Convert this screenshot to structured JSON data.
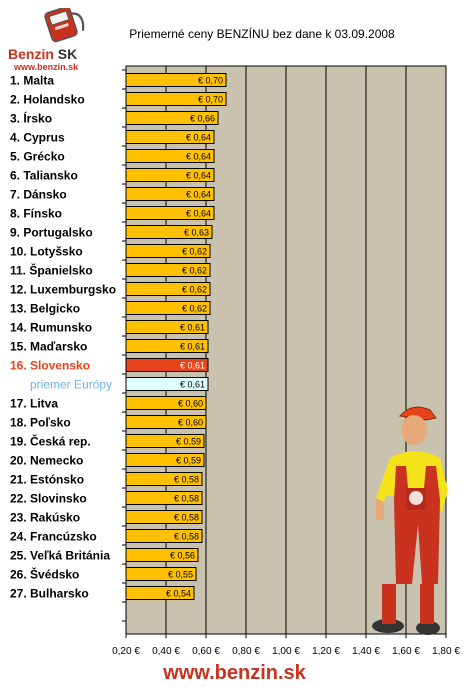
{
  "logo": {
    "brand": "Benzin",
    "brand_suffix": "SK",
    "url": "www.benzin.sk"
  },
  "footer": {
    "url": "www.benzin.sk"
  },
  "colors": {
    "bar": "#FFC000",
    "bar_highlight": "#E8441C",
    "bar_average": "#DDFFFF",
    "plot_bg": "#C8C2AE",
    "highlight_label": "#E8441C",
    "average_label": "#6CB4E6",
    "brand_red": "#C8321E"
  },
  "chart_data": {
    "type": "bar",
    "orientation": "horizontal",
    "title": "Priemerné ceny BENZÍNU bez dane k 03.09.2008",
    "categories": [
      "1. Malta",
      "2. Holandsko",
      "3. Írsko",
      "4. Cyprus",
      "5. Grécko",
      "6. Taliansko",
      "7. Dánsko",
      "8. Fínsko",
      "9. Portugalsko",
      "10. Lotyšsko",
      "11. Španielsko",
      "12. Luxemburgsko",
      "13. Belgicko",
      "14. Rumunsko",
      "15. Maďarsko",
      "16. Slovensko",
      "priemer Európy",
      "17. Litva",
      "18. Poľsko",
      "19. Česká rep.",
      "20. Nemecko",
      "21. Estónsko",
      "22. Slovinsko",
      "23. Rakúsko",
      "24. Francúzsko",
      "25. Veľká Británia",
      "26. Švédsko",
      "27. Bulharsko"
    ],
    "values": [
      0.7,
      0.7,
      0.66,
      0.64,
      0.64,
      0.64,
      0.64,
      0.64,
      0.63,
      0.62,
      0.62,
      0.62,
      0.62,
      0.61,
      0.61,
      0.61,
      0.61,
      0.6,
      0.6,
      0.59,
      0.59,
      0.58,
      0.58,
      0.58,
      0.58,
      0.56,
      0.55,
      0.54
    ],
    "value_labels": [
      "€ 0,70",
      "€ 0,70",
      "€ 0,66",
      "€ 0,64",
      "€ 0,64",
      "€ 0,64",
      "€ 0,64",
      "€ 0,64",
      "€ 0,63",
      "€ 0,62",
      "€ 0,62",
      "€ 0,62",
      "€ 0,62",
      "€ 0,61",
      "€ 0,61",
      "€ 0,61",
      "€ 0,61",
      "€ 0,60",
      "€ 0,60",
      "€ 0,59",
      "€ 0,59",
      "€ 0,58",
      "€ 0,58",
      "€ 0,58",
      "€ 0,58",
      "€ 0,56",
      "€ 0,55",
      "€ 0,54"
    ],
    "highlight": {
      "16. Slovensko": "bar_highlight",
      "priemer Európy": "bar_average"
    },
    "xlim": [
      0.2,
      1.8
    ],
    "xticks": [
      0.2,
      0.4,
      0.6,
      0.8,
      1.0,
      1.2,
      1.4,
      1.6,
      1.8
    ],
    "xtick_labels": [
      "0,20 €",
      "0,40 €",
      "0,60 €",
      "0,80 €",
      "1,00 €",
      "1,20 €",
      "1,40 €",
      "1,60 €",
      "1,80 €"
    ],
    "grid": true,
    "xlabel": "",
    "ylabel": ""
  }
}
